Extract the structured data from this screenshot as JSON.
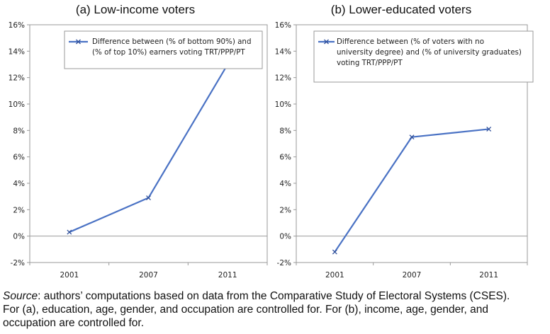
{
  "chart_data": [
    {
      "type": "line",
      "title": "(a) Low-income voters",
      "categories": [
        "2001",
        "2007",
        "2011"
      ],
      "series": [
        {
          "name": "Difference between (% of bottom 90%) and (% of top 10%) earners voting TRT/PPP/PT",
          "legend_lines": [
            "Difference between (% of bottom 90%) and",
            "(% of top 10%) earners voting TRT/PPP/PT"
          ],
          "values": [
            0.3,
            2.9,
            13.0
          ]
        }
      ],
      "ylim": [
        -2,
        16
      ],
      "yticks": [
        -2,
        0,
        2,
        4,
        6,
        8,
        10,
        12,
        14,
        16
      ],
      "ytick_labels": [
        "-2%",
        "0%",
        "2%",
        "4%",
        "6%",
        "8%",
        "10%",
        "12%",
        "14%",
        "16%"
      ],
      "legend": "top-right",
      "grid": false,
      "color": "#4a72c4"
    },
    {
      "type": "line",
      "title": "(b) Lower-educated voters",
      "categories": [
        "2001",
        "2007",
        "2011"
      ],
      "series": [
        {
          "name": "Difference between (% of voters with no university degree) and (% of university graduates) voting TRT/PPP/PT",
          "legend_lines": [
            "Difference between (% of voters with no",
            "university degree) and (% of university graduates)",
            "voting TRT/PPP/PT"
          ],
          "values": [
            -1.2,
            7.5,
            8.1
          ]
        }
      ],
      "ylim": [
        -2,
        16
      ],
      "yticks": [
        -2,
        0,
        2,
        4,
        6,
        8,
        10,
        12,
        14,
        16
      ],
      "ytick_labels": [
        "-2%",
        "0%",
        "2%",
        "4%",
        "6%",
        "8%",
        "10%",
        "12%",
        "14%",
        "16%"
      ],
      "legend": "top-left",
      "grid": false,
      "color": "#4a72c4"
    }
  ],
  "caption": {
    "source_label": "Source",
    "line1_rest": ": authors’ computations based on data from the Comparative Study of Electoral Systems (CSES).",
    "line2": "For (a), education, age, gender, and occupation are controlled for.  For (b), income, age, gender, and",
    "line3": "occupation are controlled for."
  }
}
